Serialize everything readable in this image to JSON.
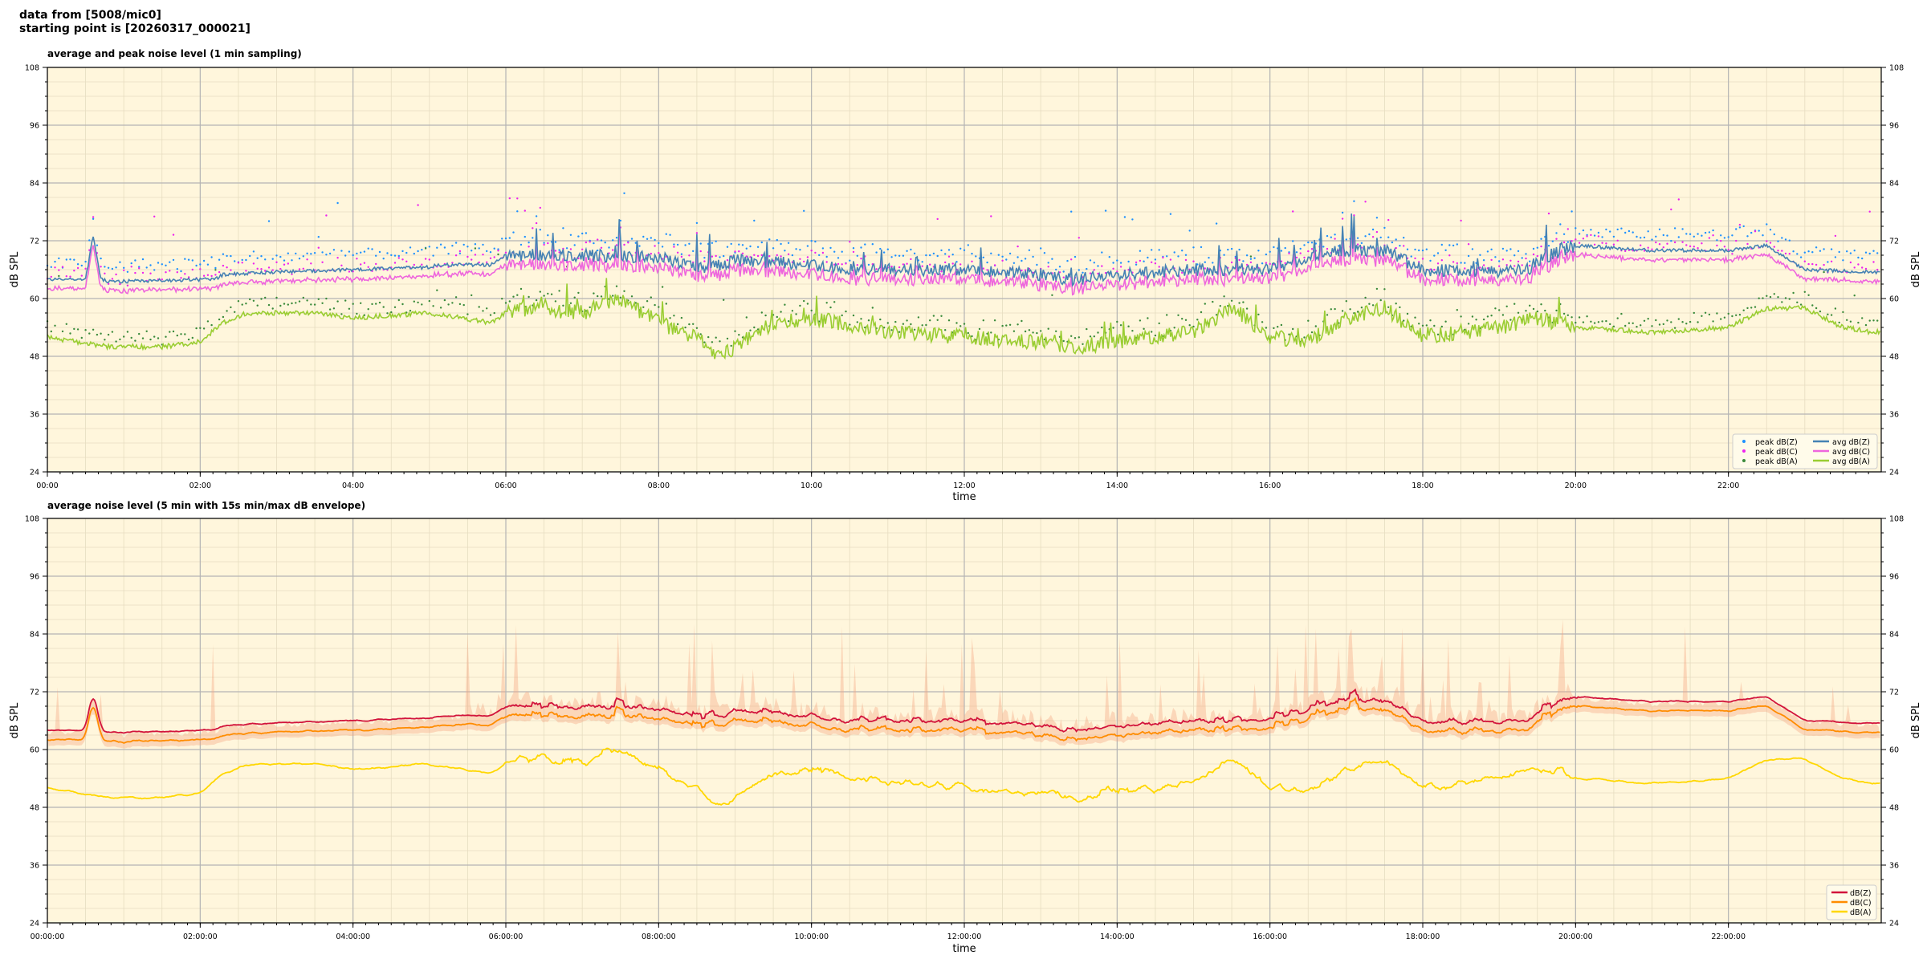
{
  "header": {
    "line1": "data from [5008/mic0]",
    "line2": "starting point is [20260317_000021]"
  },
  "colors": {
    "panel_bg": "#fff6dc",
    "peak_z": "#1e90ff",
    "peak_c": "#ee22ee",
    "peak_a": "#3a8a3a",
    "avg_z": "#4682b4",
    "avg_c": "#ee66dd",
    "avg_a": "#9acd32",
    "env_z": "#d2143c",
    "env_c": "#ff8c00",
    "env_a": "#ffd700",
    "envelope_band": "#f4a582"
  },
  "chart_data": [
    {
      "type": "line",
      "title": "average and peak noise level (1 min sampling)",
      "xlabel": "time",
      "ylabel": "dB SPL",
      "ylim": [
        24,
        108
      ],
      "xlim_hours": [
        0,
        24
      ],
      "yticks": [
        "24",
        "36",
        "48",
        "60",
        "72",
        "84",
        "96",
        "108"
      ],
      "xticks": [
        "00:00",
        "02:00",
        "04:00",
        "06:00",
        "08:00",
        "10:00",
        "12:00",
        "14:00",
        "16:00",
        "18:00",
        "20:00",
        "22:00"
      ],
      "grid": true,
      "legend_position": "bottom-right",
      "legend": [
        "peak dB(Z)",
        "peak dB(C)",
        "peak dB(A)",
        "avg dB(Z)",
        "avg dB(C)",
        "avg dB(A)"
      ],
      "series_keys": {
        "base_z_hours": [
          0,
          0.5,
          0.6,
          0.7,
          0.8,
          2.2,
          2.3,
          3.0,
          4.0,
          5.0,
          5.1,
          5.2,
          5.8,
          5.9,
          6.0,
          7.0,
          8.0,
          8.6,
          9.0,
          10.0,
          10.5,
          11.0,
          12.0,
          13.0,
          13.3,
          13.5,
          14.0,
          15.0,
          16.0,
          16.8,
          17.5,
          18.0,
          19.0,
          19.4,
          19.5,
          20.0,
          21.0,
          22.0,
          22.5,
          23.0,
          23.9
        ],
        "base_z_values": [
          64,
          64,
          73,
          64,
          63.5,
          64,
          65,
          65.5,
          66,
          66.5,
          67,
          67,
          67,
          68,
          69,
          69,
          68.5,
          66,
          68,
          67,
          66,
          66,
          66,
          65,
          64,
          64,
          65,
          66,
          66,
          70,
          70,
          66,
          65.5,
          66,
          68,
          71,
          70,
          70,
          71,
          66,
          65.5
        ],
        "base_a_hours": [
          0,
          0.8,
          1.5,
          2.0,
          2.3,
          2.6,
          3.5,
          4.0,
          5.0,
          5.8,
          6.0,
          6.3,
          7.0,
          7.5,
          8.0,
          8.6,
          8.8,
          9.5,
          10.0,
          11.0,
          12.0,
          13.0,
          13.5,
          14.5,
          15.0,
          15.5,
          16.0,
          16.5,
          17.0,
          17.5,
          18.0,
          18.5,
          19.0,
          19.5,
          20.0,
          21.0,
          22.0,
          22.5,
          23.0,
          23.5,
          23.9
        ],
        "base_a_values": [
          52,
          50,
          50,
          51,
          55,
          57,
          57,
          56,
          57,
          55,
          57,
          58,
          57,
          60,
          55,
          51,
          48,
          55,
          56,
          53,
          52,
          51,
          50,
          52,
          53,
          58,
          52,
          51,
          56,
          58,
          52,
          53,
          54,
          56,
          54,
          53,
          54,
          58,
          58,
          54,
          53
        ]
      }
    },
    {
      "type": "line",
      "title": "average noise level (5 min with 15s min/max dB envelope)",
      "xlabel": "time",
      "ylabel": "dB SPL",
      "ylim": [
        24,
        108
      ],
      "xlim_hours": [
        0,
        24
      ],
      "yticks": [
        "24",
        "36",
        "48",
        "60",
        "72",
        "84",
        "96",
        "108"
      ],
      "xticks": [
        "00:00:00",
        "02:00:00",
        "04:00:00",
        "06:00:00",
        "08:00:00",
        "10:00:00",
        "12:00:00",
        "14:00:00",
        "16:00:00",
        "18:00:00",
        "20:00:00",
        "22:00:00"
      ],
      "grid": true,
      "legend_position": "bottom-right",
      "legend": [
        "dB(Z)",
        "dB(C)",
        "dB(A)"
      ]
    }
  ]
}
